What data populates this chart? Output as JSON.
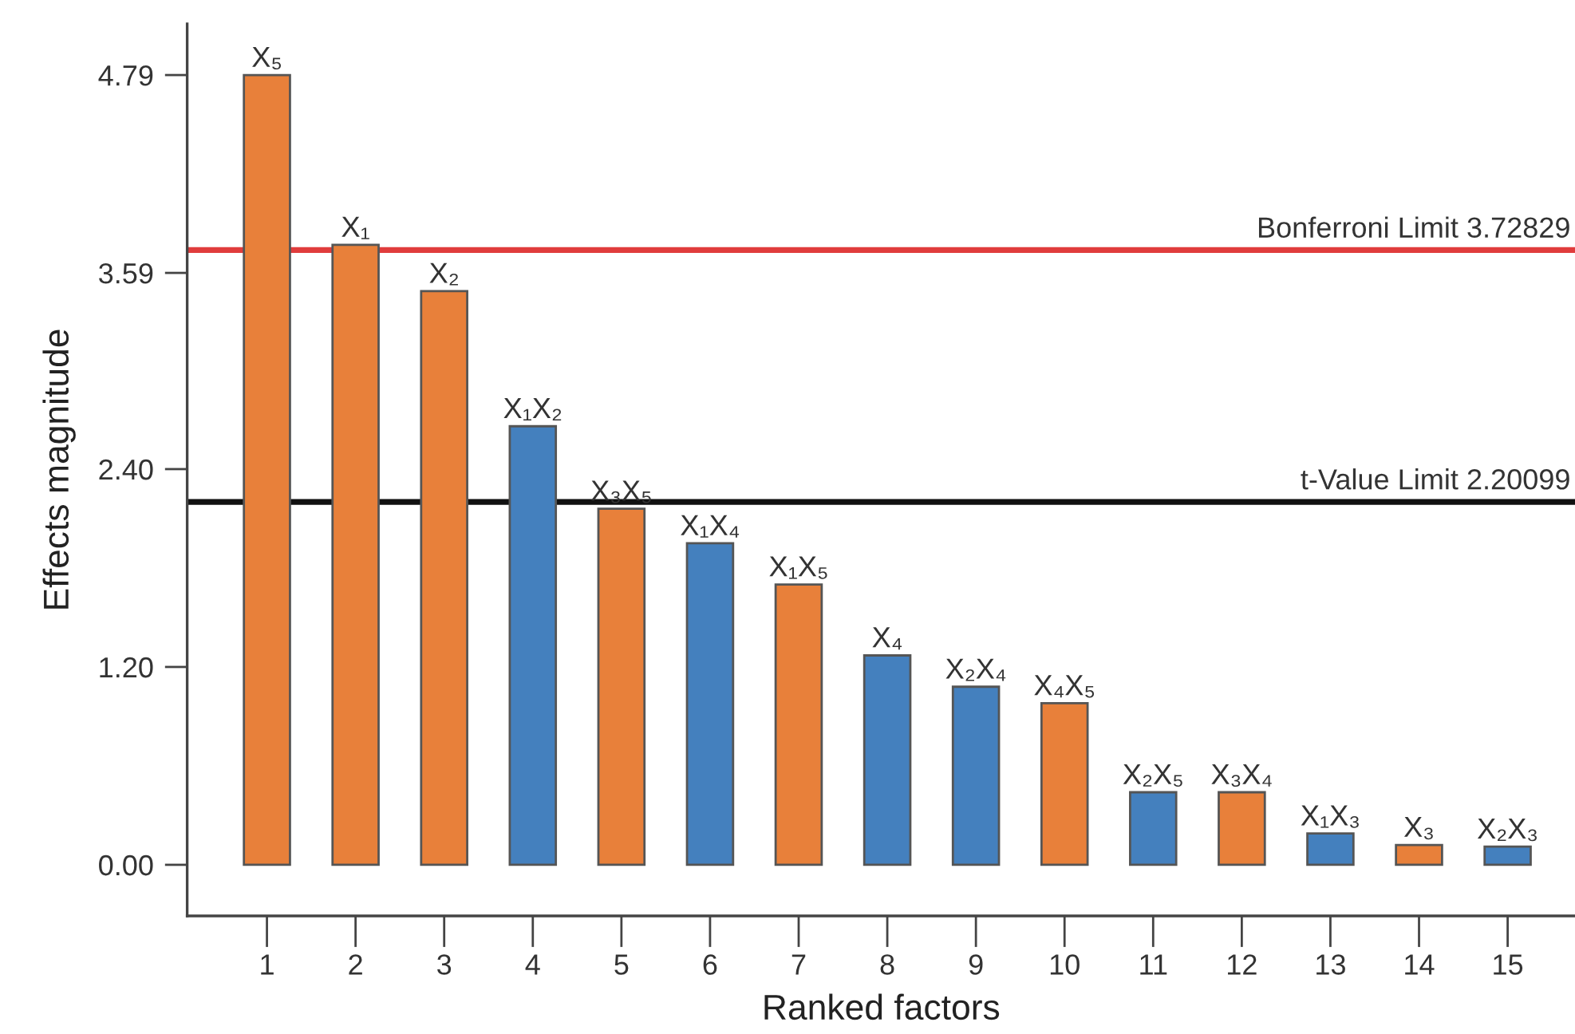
{
  "chart_data": {
    "type": "bar",
    "xlabel": "Ranked factors",
    "ylabel": "Effects magnitude",
    "categories": [
      "1",
      "2",
      "3",
      "4",
      "5",
      "6",
      "7",
      "8",
      "9",
      "10",
      "11",
      "12",
      "13",
      "14",
      "15"
    ],
    "values": [
      4.79,
      3.76,
      3.48,
      2.66,
      2.16,
      1.95,
      1.7,
      1.27,
      1.08,
      0.98,
      0.44,
      0.44,
      0.19,
      0.12,
      0.11
    ],
    "colors": [
      "#e8803a",
      "#e8803a",
      "#e8803a",
      "#4480be",
      "#e8803a",
      "#4480be",
      "#e8803a",
      "#4480be",
      "#4480be",
      "#e8803a",
      "#4480be",
      "#e8803a",
      "#4480be",
      "#e8803a",
      "#4480be"
    ],
    "ylim": [
      -0.31,
      5.1
    ],
    "yticks": [
      {
        "value": 0,
        "label": "0.00"
      },
      {
        "value": 1.2,
        "label": "1.20"
      },
      {
        "value": 2.4,
        "label": "2.40"
      },
      {
        "value": 3.59,
        "label": "3.59"
      },
      {
        "value": 4.79,
        "label": "4.79"
      }
    ],
    "ref_lines": [
      {
        "axis": "y",
        "value": 3.72829,
        "label": "Bonferroni Limit 3.72829",
        "color": "#e03c3c"
      },
      {
        "axis": "y",
        "value": 2.20099,
        "label": "t-Value Limit 2.20099",
        "color": "#111111"
      }
    ],
    "annotations": [
      {
        "text": "X₅",
        "x": "1",
        "y": 4.79
      },
      {
        "text": "X₁",
        "x": "2",
        "y": 3.76
      },
      {
        "text": "X₂",
        "x": "3",
        "y": 3.48
      },
      {
        "text": "X₁X₂",
        "x": "4",
        "y": 2.66
      },
      {
        "text": "X₃X₅",
        "x": "5",
        "y": 2.16
      },
      {
        "text": "X₁X₄",
        "x": "6",
        "y": 1.95
      },
      {
        "text": "X₁X₅",
        "x": "7",
        "y": 1.7
      },
      {
        "text": "X₄",
        "x": "8",
        "y": 1.27
      },
      {
        "text": "X₂X₄",
        "x": "9",
        "y": 1.08
      },
      {
        "text": "X₄X₅",
        "x": "10",
        "y": 0.98
      },
      {
        "text": "X₂X₅",
        "x": "11",
        "y": 0.44
      },
      {
        "text": "X₃X₄",
        "x": "12",
        "y": 0.44
      },
      {
        "text": "X₁X₃",
        "x": "13",
        "y": 0.19
      },
      {
        "text": "X₃",
        "x": "14",
        "y": 0.12
      },
      {
        "text": "X₂X₃",
        "x": "15",
        "y": 0.11
      }
    ],
    "grid": false,
    "legend": false
  }
}
